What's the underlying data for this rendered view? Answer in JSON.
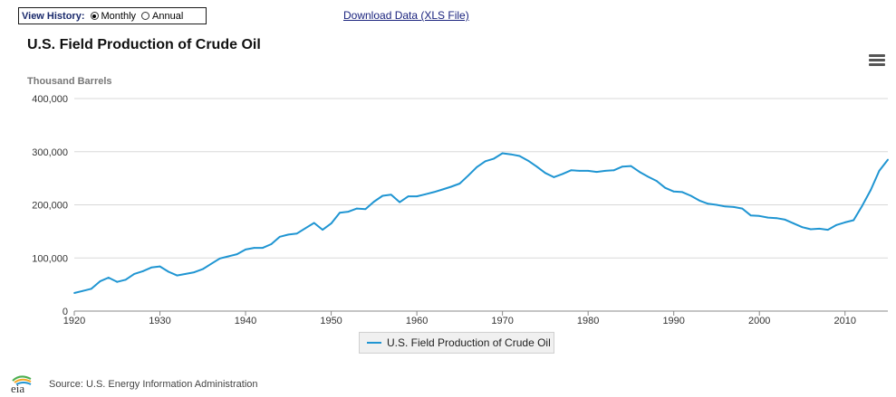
{
  "history": {
    "label": "View History:",
    "options": [
      {
        "label": "Monthly",
        "selected": true
      },
      {
        "label": "Annual",
        "selected": false
      }
    ]
  },
  "download_link": "Download Data (XLS File)",
  "icons": {
    "menu": "hamburger-menu-icon",
    "logo": "eia-logo"
  },
  "source": {
    "logo_text": "eia",
    "text": "Source: U.S. Energy Information Administration"
  },
  "colors": {
    "series": "#1f95d2",
    "grid": "#d8d8d8",
    "axis": "#888888"
  },
  "chart_data": {
    "type": "line",
    "title": "U.S. Field Production of Crude Oil",
    "ylabel": "Thousand Barrels",
    "xlabel": "",
    "xlim": [
      1920,
      2015
    ],
    "ylim": [
      0,
      400000
    ],
    "x_ticks": [
      1920,
      1930,
      1940,
      1950,
      1960,
      1970,
      1980,
      1990,
      2000,
      2010
    ],
    "y_ticks": [
      0,
      100000,
      200000,
      300000,
      400000
    ],
    "y_tick_labels": [
      "0",
      "100,000",
      "200,000",
      "300,000",
      "400,000"
    ],
    "grid": true,
    "legend_position": "bottom-center",
    "series": [
      {
        "name": "U.S. Field Production of Crude Oil",
        "x": [
          1920,
          1921,
          1922,
          1923,
          1924,
          1925,
          1926,
          1927,
          1928,
          1929,
          1930,
          1931,
          1932,
          1933,
          1934,
          1935,
          1936,
          1937,
          1938,
          1939,
          1940,
          1941,
          1942,
          1943,
          1944,
          1945,
          1946,
          1947,
          1948,
          1949,
          1950,
          1951,
          1952,
          1953,
          1954,
          1955,
          1956,
          1957,
          1958,
          1959,
          1960,
          1961,
          1962,
          1963,
          1964,
          1965,
          1966,
          1967,
          1968,
          1969,
          1970,
          1971,
          1972,
          1973,
          1974,
          1975,
          1976,
          1977,
          1978,
          1979,
          1980,
          1981,
          1982,
          1983,
          1984,
          1985,
          1986,
          1987,
          1988,
          1989,
          1990,
          1991,
          1992,
          1993,
          1994,
          1995,
          1996,
          1997,
          1998,
          1999,
          2000,
          2001,
          2002,
          2003,
          2004,
          2005,
          2006,
          2007,
          2008,
          2009,
          2010,
          2011,
          2012,
          2013,
          2014,
          2015
        ],
        "values": [
          34000,
          38000,
          42000,
          56000,
          63000,
          55000,
          59000,
          70000,
          75000,
          82000,
          84000,
          74000,
          67000,
          70000,
          73000,
          79000,
          89000,
          99000,
          103000,
          107000,
          116000,
          119000,
          119000,
          126000,
          140000,
          144000,
          146000,
          156000,
          166000,
          153000,
          165000,
          185000,
          187000,
          193000,
          192000,
          206000,
          217000,
          219000,
          205000,
          216000,
          216000,
          220000,
          224000,
          229000,
          234000,
          240000,
          255000,
          271000,
          282000,
          287000,
          297000,
          295000,
          292000,
          283000,
          272000,
          260000,
          252000,
          258000,
          265000,
          264000,
          264000,
          262000,
          264000,
          265000,
          272000,
          273000,
          262000,
          253000,
          245000,
          232000,
          225000,
          224000,
          217000,
          208000,
          202000,
          200000,
          197000,
          196000,
          193000,
          180000,
          179000,
          176000,
          175000,
          172000,
          165000,
          158000,
          154000,
          155000,
          153000,
          162000,
          167000,
          171000,
          198000,
          228000,
          264000,
          285000
        ]
      }
    ]
  }
}
